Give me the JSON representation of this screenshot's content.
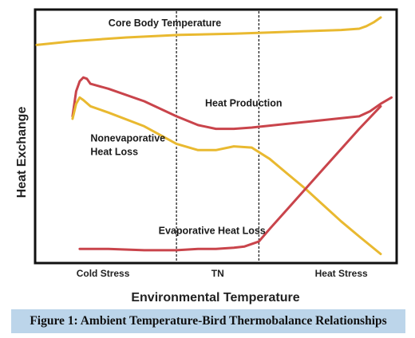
{
  "caption": "Figure 1: Ambient Temperature-Bird Thermobalance Relationships",
  "chart_data": {
    "type": "line",
    "xlabel": "Environmental Temperature",
    "ylabel": "Heat Exchange",
    "xlim": [
      0,
      100
    ],
    "ylim": [
      0,
      100
    ],
    "grid": false,
    "x_ticks": [
      {
        "x": 18.5,
        "label": "Cold Stress"
      },
      {
        "x": 50.5,
        "label": "TN"
      },
      {
        "x": 85.0,
        "label": "Heat Stress"
      }
    ],
    "zone_boundaries": [
      39,
      62
    ],
    "series": [
      {
        "name": "Core Body Temperature",
        "color": "#e9b930",
        "label_pos": [
          20,
          94
        ],
        "x": [
          0,
          10,
          25,
          40,
          55,
          65,
          75,
          85,
          90,
          92,
          94,
          96
        ],
        "y": [
          86.5,
          88,
          89.5,
          90.5,
          91,
          91.5,
          92,
          92.5,
          93,
          94,
          95.5,
          97.5
        ]
      },
      {
        "name": "Heat Production",
        "color": "#c9444b",
        "label_pos": [
          47,
          62
        ],
        "x": [
          10,
          11,
          12,
          13,
          14,
          15,
          20,
          30,
          39,
          45,
          50,
          55,
          60,
          70,
          80,
          90,
          93,
          96,
          99
        ],
        "y": [
          58,
          68,
          72,
          73.5,
          73,
          71,
          69,
          64,
          58,
          54.5,
          53,
          53,
          53.5,
          55,
          56.5,
          58,
          60,
          63,
          65.5
        ]
      },
      {
        "name": "Nonevaporative\nHeat Loss",
        "color": "#e9b930",
        "label_pos": [
          15,
          48
        ],
        "x": [
          10,
          11,
          12,
          13,
          15,
          20,
          30,
          39,
          45,
          50,
          55,
          60,
          65,
          70,
          75,
          80,
          85,
          90,
          96
        ],
        "y": [
          57,
          63,
          65.5,
          64.5,
          62,
          59.5,
          54,
          47,
          44.5,
          44.5,
          46,
          45.5,
          41,
          35,
          29,
          22.5,
          16,
          10,
          3
        ]
      },
      {
        "name": "Evaporative Heat Loss",
        "color": "#c9444b",
        "label_pos": [
          34,
          11
        ],
        "x": [
          12,
          20,
          30,
          39,
          45,
          50,
          55,
          58,
          62,
          65,
          70,
          75,
          80,
          85,
          90,
          96
        ],
        "y": [
          5,
          5,
          4.5,
          4.5,
          5,
          5,
          5.5,
          6,
          8,
          13,
          21,
          29,
          37,
          45,
          53,
          62
        ]
      }
    ]
  }
}
